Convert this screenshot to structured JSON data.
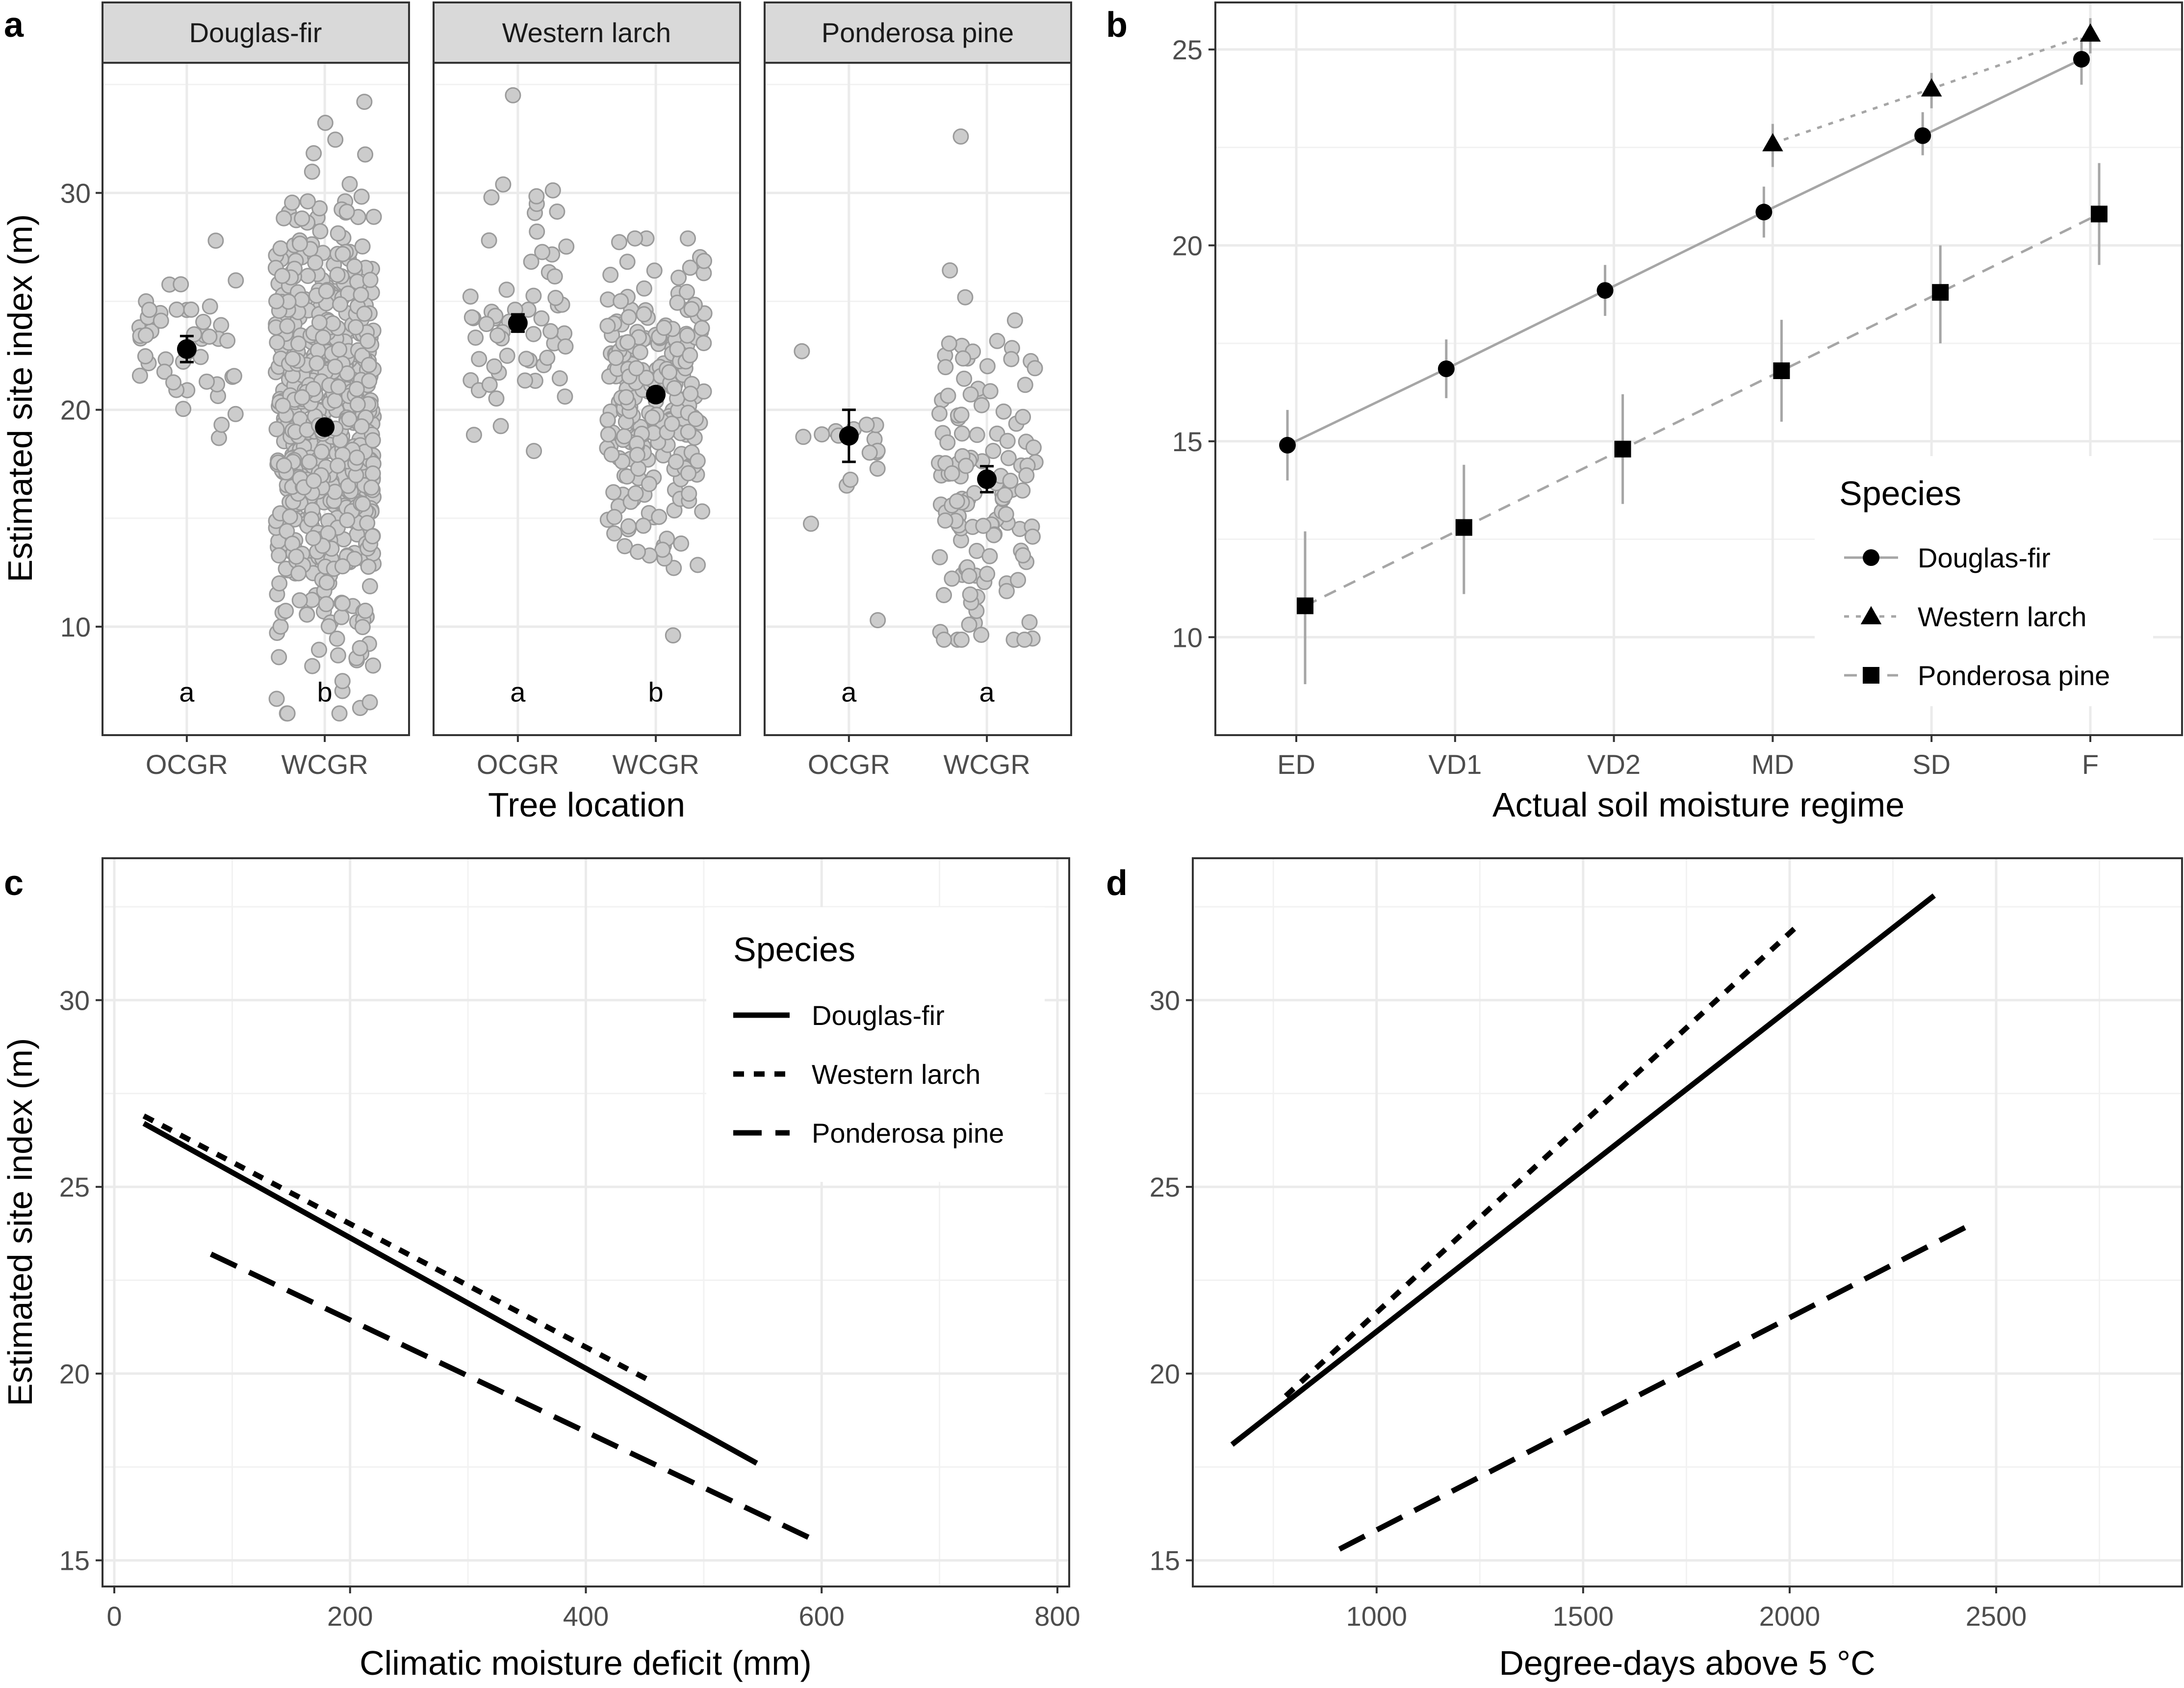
{
  "panel_labels": [
    "a",
    "b",
    "c",
    "d"
  ],
  "chart_data": [
    {
      "id": "a",
      "type": "scatter",
      "facets": [
        "Douglas-fir",
        "Western larch",
        "Ponderosa pine"
      ],
      "categories": [
        "OCGR",
        "WCGR"
      ],
      "xlabel": "Tree location",
      "ylabel": "Estimated site index (m)",
      "ylim": [
        5,
        36
      ],
      "yticks": [
        10,
        20,
        30
      ],
      "means": [
        {
          "facet": "Douglas-fir",
          "category": "OCGR",
          "mean": 22.8,
          "low": 22.2,
          "high": 23.4,
          "letter": "a",
          "n": 48,
          "min": 18.7,
          "max": 27.8
        },
        {
          "facet": "Douglas-fir",
          "category": "WCGR",
          "mean": 19.2,
          "low": 19.0,
          "high": 19.4,
          "letter": "b",
          "n": 700,
          "min": 6.0,
          "max": 34.2
        },
        {
          "facet": "Western larch",
          "category": "OCGR",
          "mean": 24.0,
          "low": 23.6,
          "high": 24.4,
          "letter": "a",
          "n": 60,
          "min": 18.1,
          "max": 34.5
        },
        {
          "facet": "Western larch",
          "category": "WCGR",
          "mean": 20.7,
          "low": 20.4,
          "high": 21.0,
          "letter": "b",
          "n": 250,
          "min": 9.6,
          "max": 27.9
        },
        {
          "facet": "Ponderosa pine",
          "category": "OCGR",
          "mean": 18.8,
          "low": 17.6,
          "high": 20.0,
          "letter": "a",
          "n": 17,
          "min": 10.3,
          "max": 22.7
        },
        {
          "facet": "Ponderosa pine",
          "category": "WCGR",
          "mean": 16.8,
          "low": 16.2,
          "high": 17.4,
          "letter": "a",
          "n": 130,
          "min": 9.4,
          "max": 32.6
        }
      ]
    },
    {
      "id": "b",
      "type": "line",
      "categories": [
        "ED",
        "VD1",
        "VD2",
        "MD",
        "SD",
        "F"
      ],
      "xlabel": "Actual soil moisture regime",
      "ylabel": "",
      "ylim": [
        7.5,
        26.2
      ],
      "yticks": [
        10,
        15,
        20,
        25
      ],
      "legend_title": "Species",
      "legend_position": "right",
      "series": [
        {
          "name": "Douglas-fir",
          "marker": "circle",
          "linestyle": "solid",
          "values": [
            14.9,
            16.85,
            18.85,
            20.85,
            22.8,
            24.75
          ],
          "low": [
            14.0,
            16.1,
            18.2,
            20.2,
            22.3,
            24.1
          ],
          "high": [
            15.8,
            17.6,
            19.5,
            21.5,
            23.4,
            25.3
          ]
        },
        {
          "name": "Western larch",
          "marker": "triangle",
          "linestyle": "dotted",
          "values": [
            null,
            null,
            null,
            22.6,
            24.0,
            25.4
          ],
          "low": [
            null,
            null,
            null,
            22.0,
            23.5,
            24.9
          ],
          "high": [
            null,
            null,
            null,
            23.1,
            24.4,
            25.8
          ]
        },
        {
          "name": "Ponderosa pine",
          "marker": "square",
          "linestyle": "dashed",
          "values": [
            10.8,
            12.8,
            14.8,
            16.8,
            18.8,
            20.8
          ],
          "low": [
            8.8,
            11.1,
            13.4,
            15.5,
            17.5,
            19.5
          ],
          "high": [
            12.7,
            14.4,
            16.2,
            18.1,
            20.0,
            22.1
          ]
        }
      ]
    },
    {
      "id": "c",
      "type": "line",
      "xlabel": "Climatic moisture deficit (mm)",
      "ylabel": "Estimated site index (m)",
      "xlim": [
        -10,
        810
      ],
      "ylim": [
        14.3,
        33.8
      ],
      "xticks": [
        0,
        200,
        400,
        600,
        800
      ],
      "yticks": [
        15,
        20,
        25,
        30
      ],
      "legend_title": "Species",
      "legend_position": "top-right",
      "series": [
        {
          "name": "Douglas-fir",
          "linestyle": "solid",
          "x": [
            25,
            545
          ],
          "y": [
            26.7,
            17.6
          ]
        },
        {
          "name": "Western larch",
          "linestyle": "dotted",
          "x": [
            25,
            455
          ],
          "y": [
            26.9,
            19.8
          ]
        },
        {
          "name": "Ponderosa pine",
          "linestyle": "dashed",
          "x": [
            82,
            590
          ],
          "y": [
            23.2,
            15.6
          ]
        }
      ]
    },
    {
      "id": "d",
      "type": "line",
      "xlabel": "Degree-days above 5 °C",
      "ylabel": "",
      "xlim": [
        555,
        2950
      ],
      "ylim": [
        14.3,
        33.8
      ],
      "xticks": [
        1000,
        1500,
        2000,
        2500
      ],
      "yticks": [
        15,
        20,
        25,
        30
      ],
      "series": [
        {
          "name": "Douglas-fir",
          "linestyle": "solid",
          "x": [
            650,
            2350
          ],
          "y": [
            18.1,
            32.8
          ]
        },
        {
          "name": "Western larch",
          "linestyle": "dotted",
          "x": [
            780,
            2020
          ],
          "y": [
            19.4,
            32.0
          ]
        },
        {
          "name": "Ponderosa pine",
          "linestyle": "dashed",
          "x": [
            910,
            2440
          ],
          "y": [
            15.3,
            24.0
          ]
        }
      ]
    }
  ]
}
